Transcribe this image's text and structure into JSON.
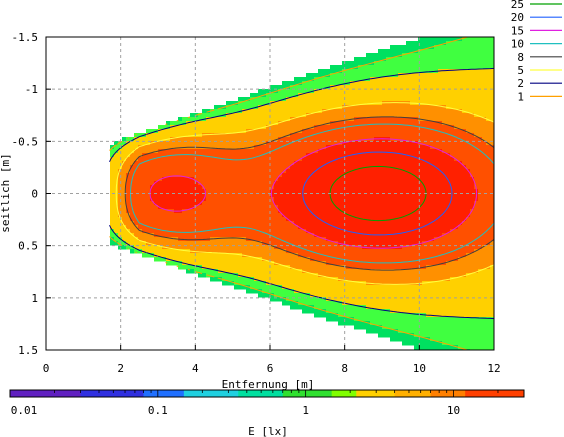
{
  "chart_data": {
    "type": "heatmap",
    "xlabel": "Entfernung [m]",
    "ylabel": "seitlich [m]",
    "colorbar_label": "E [lx]",
    "xlim": [
      0,
      12
    ],
    "ylim": [
      -1.5,
      1.5
    ],
    "y_inverted": true,
    "x_ticks": [
      0,
      2,
      4,
      6,
      8,
      10,
      12
    ],
    "x_tick_labels": [
      "0",
      "2",
      "4",
      "6",
      "8",
      "10",
      "12"
    ],
    "y_ticks": [
      -1.5,
      -1,
      -0.5,
      0,
      0.5,
      1,
      1.5
    ],
    "y_tick_labels": [
      "-1.5",
      "-1",
      "-0.5",
      "0",
      "0.5",
      "1",
      "1.5"
    ],
    "grid": true,
    "colorbar": {
      "scale": "log",
      "range": [
        0.01,
        30
      ],
      "ticks": [
        0.01,
        0.1,
        1,
        10
      ],
      "tick_labels": [
        "0.01",
        "0.1",
        "1",
        "10"
      ]
    },
    "contour_levels": [
      {
        "value": "25",
        "color": "#00a000"
      },
      {
        "value": "20",
        "color": "#2060ff"
      },
      {
        "value": "15",
        "color": "#e020e0"
      },
      {
        "value": "10",
        "color": "#20c0c0"
      },
      {
        "value": "8",
        "color": "#404040"
      },
      {
        "value": "5",
        "color": "#ffff40"
      },
      {
        "value": "2",
        "color": "#000080"
      },
      {
        "value": "1",
        "color": "#ffa000"
      }
    ],
    "legend_position": "top-right",
    "illuminance_bands": [
      {
        "min_lx": 0.5,
        "color": "#00e060"
      },
      {
        "min_lx": 1,
        "color": "#40ff40"
      },
      {
        "min_lx": 2,
        "color": "#ffd000"
      },
      {
        "min_lx": 5,
        "color": "#ff9000"
      },
      {
        "min_lx": 8,
        "color": "#ff5000"
      },
      {
        "min_lx": 15,
        "color": "#ff2000"
      }
    ]
  }
}
